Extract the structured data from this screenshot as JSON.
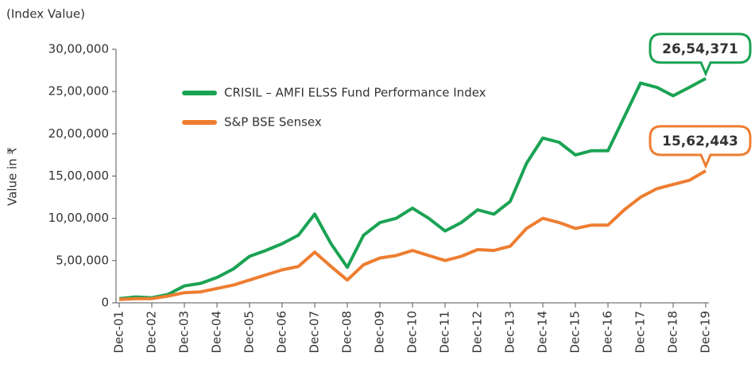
{
  "chart_data": {
    "type": "line",
    "unit_note": "(Index Value)",
    "y_label": "Value in ₹",
    "categories": [
      "Dec-01",
      null,
      "Dec-02",
      null,
      "Dec-03",
      null,
      "Dec-04",
      null,
      "Dec-05",
      null,
      "Dec-06",
      null,
      "Dec-07",
      null,
      "Dec-08",
      null,
      "Dec-09",
      null,
      "Dec-10",
      null,
      "Dec-11",
      null,
      "Dec-12",
      null,
      "Dec-13",
      null,
      "Dec-14",
      null,
      "Dec-15",
      null,
      "Dec-16",
      null,
      "Dec-17",
      null,
      "Dec-18",
      null,
      "Dec-19"
    ],
    "series": [
      {
        "name": "CRISIL – AMFI ELSS Fund Performance Index",
        "color": "#1aa353",
        "values": [
          50000,
          70000,
          60000,
          100000,
          200000,
          230000,
          300000,
          400000,
          550000,
          620000,
          700000,
          800000,
          1050000,
          700000,
          420000,
          800000,
          950000,
          1000000,
          1120000,
          1000000,
          850000,
          950000,
          1100000,
          1050000,
          1200000,
          1650000,
          1950000,
          1900000,
          1750000,
          1800000,
          1800000,
          2200000,
          2600000,
          2550000,
          2450000,
          2550000,
          2654371
        ],
        "value_labels": [
          null,
          null,
          null,
          null,
          null,
          null,
          null,
          null,
          null,
          null,
          null,
          null,
          null,
          null,
          null,
          null,
          null,
          null,
          null,
          null,
          null,
          null,
          null,
          null,
          null,
          null,
          null,
          null,
          null,
          null,
          null,
          null,
          null,
          null,
          null,
          null,
          "26,54,371"
        ]
      },
      {
        "name": "S&P BSE Sensex",
        "color": "#ee7d31",
        "values": [
          40000,
          50000,
          50000,
          80000,
          120000,
          130000,
          170000,
          210000,
          270000,
          330000,
          390000,
          430000,
          600000,
          430000,
          270000,
          450000,
          530000,
          560000,
          620000,
          560000,
          500000,
          550000,
          630000,
          620000,
          670000,
          880000,
          1000000,
          950000,
          880000,
          920000,
          920000,
          1100000,
          1250000,
          1350000,
          1400000,
          1450000,
          1562443
        ],
        "value_labels": [
          null,
          null,
          null,
          null,
          null,
          null,
          null,
          null,
          null,
          null,
          null,
          null,
          null,
          null,
          null,
          null,
          null,
          null,
          null,
          null,
          null,
          null,
          null,
          null,
          null,
          null,
          null,
          null,
          null,
          null,
          null,
          null,
          null,
          null,
          null,
          null,
          "15,62,443"
        ]
      }
    ],
    "ylim": [
      0,
      3000000
    ],
    "yticks": [
      0,
      {
        "value": 500000,
        "label": "5,00,000"
      },
      {
        "value": 1000000,
        "label": "10,00,000"
      },
      {
        "value": 1500000,
        "label": "15,00,000"
      },
      {
        "value": 2000000,
        "label": "20,00,000"
      },
      {
        "value": 2500000,
        "label": "25,00,000"
      },
      {
        "value": 3000000,
        "label": "30,00,000"
      }
    ],
    "grid": false,
    "legend": "top-left"
  }
}
